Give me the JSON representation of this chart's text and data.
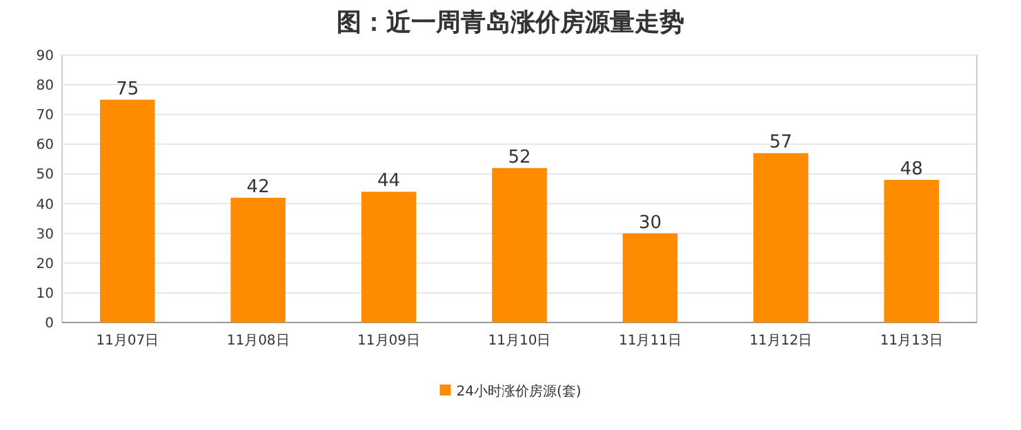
{
  "chart_data": {
    "type": "bar",
    "title": "图：近一周青岛涨价房源量走势",
    "categories": [
      "11月07日",
      "11月08日",
      "11月09日",
      "11月10日",
      "11月11日",
      "11月12日",
      "11月13日"
    ],
    "series": [
      {
        "name": "24小时涨价房源(套)",
        "color": "#ff8c00",
        "values": [
          75,
          42,
          44,
          52,
          30,
          57,
          48
        ]
      }
    ],
    "ylim": [
      0,
      90
    ],
    "yticks": [
      0,
      10,
      20,
      30,
      40,
      50,
      60,
      70,
      80,
      90
    ],
    "grid": "y",
    "data_labels": true,
    "legend": "bottom"
  }
}
